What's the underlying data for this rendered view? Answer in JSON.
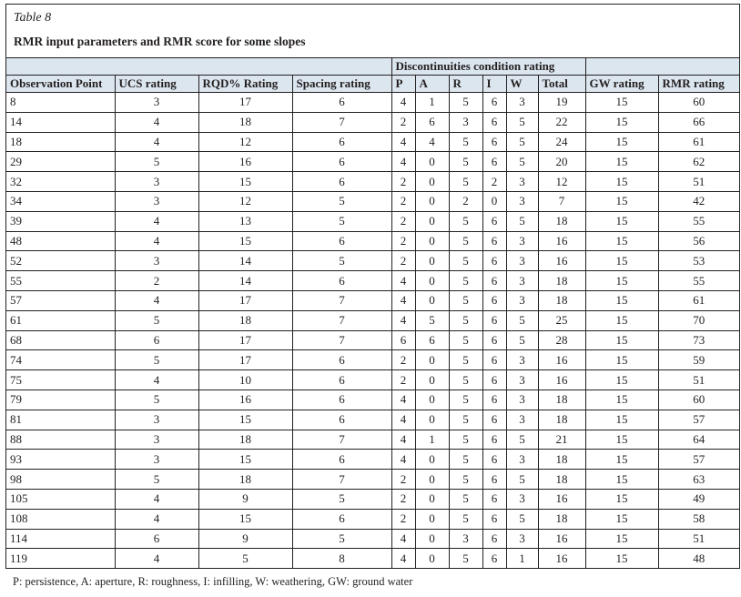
{
  "table": {
    "number": "Table 8",
    "title": "RMR input parameters and RMR score for some slopes",
    "group_header": "Discontinuities condition rating",
    "columns": [
      "Observation Point",
      "UCS rating",
      "RQD% Rating",
      "Spacing rating",
      "P",
      "A",
      "R",
      "I",
      "W",
      "Total",
      "GW rating",
      "RMR rating"
    ],
    "rows": [
      [
        "8",
        "3",
        "17",
        "6",
        "4",
        "1",
        "5",
        "6",
        "3",
        "19",
        "15",
        "60"
      ],
      [
        "14",
        "4",
        "18",
        "7",
        "2",
        "6",
        "3",
        "6",
        "5",
        "22",
        "15",
        "66"
      ],
      [
        "18",
        "4",
        "12",
        "6",
        "4",
        "4",
        "5",
        "6",
        "5",
        "24",
        "15",
        "61"
      ],
      [
        "29",
        "5",
        "16",
        "6",
        "4",
        "0",
        "5",
        "6",
        "5",
        "20",
        "15",
        "62"
      ],
      [
        "32",
        "3",
        "15",
        "6",
        "2",
        "0",
        "5",
        "2",
        "3",
        "12",
        "15",
        "51"
      ],
      [
        "34",
        "3",
        "12",
        "5",
        "2",
        "0",
        "2",
        "0",
        "3",
        "7",
        "15",
        "42"
      ],
      [
        "39",
        "4",
        "13",
        "5",
        "2",
        "0",
        "5",
        "6",
        "5",
        "18",
        "15",
        "55"
      ],
      [
        "48",
        "4",
        "15",
        "6",
        "2",
        "0",
        "5",
        "6",
        "3",
        "16",
        "15",
        "56"
      ],
      [
        "52",
        "3",
        "14",
        "5",
        "2",
        "0",
        "5",
        "6",
        "3",
        "16",
        "15",
        "53"
      ],
      [
        "55",
        "2",
        "14",
        "6",
        "4",
        "0",
        "5",
        "6",
        "3",
        "18",
        "15",
        "55"
      ],
      [
        "57",
        "4",
        "17",
        "7",
        "4",
        "0",
        "5",
        "6",
        "3",
        "18",
        "15",
        "61"
      ],
      [
        "61",
        "5",
        "18",
        "7",
        "4",
        "5",
        "5",
        "6",
        "5",
        "25",
        "15",
        "70"
      ],
      [
        "68",
        "6",
        "17",
        "7",
        "6",
        "6",
        "5",
        "6",
        "5",
        "28",
        "15",
        "73"
      ],
      [
        "74",
        "5",
        "17",
        "6",
        "2",
        "0",
        "5",
        "6",
        "3",
        "16",
        "15",
        "59"
      ],
      [
        "75",
        "4",
        "10",
        "6",
        "2",
        "0",
        "5",
        "6",
        "3",
        "16",
        "15",
        "51"
      ],
      [
        "79",
        "5",
        "16",
        "6",
        "4",
        "0",
        "5",
        "6",
        "3",
        "18",
        "15",
        "60"
      ],
      [
        "81",
        "3",
        "15",
        "6",
        "4",
        "0",
        "5",
        "6",
        "3",
        "18",
        "15",
        "57"
      ],
      [
        "88",
        "3",
        "18",
        "7",
        "4",
        "1",
        "5",
        "6",
        "5",
        "21",
        "15",
        "64"
      ],
      [
        "93",
        "3",
        "15",
        "6",
        "4",
        "0",
        "5",
        "6",
        "3",
        "18",
        "15",
        "57"
      ],
      [
        "98",
        "5",
        "18",
        "7",
        "2",
        "0",
        "5",
        "6",
        "5",
        "18",
        "15",
        "63"
      ],
      [
        "105",
        "4",
        "9",
        "5",
        "2",
        "0",
        "5",
        "6",
        "3",
        "16",
        "15",
        "49"
      ],
      [
        "108",
        "4",
        "15",
        "6",
        "2",
        "0",
        "5",
        "6",
        "5",
        "18",
        "15",
        "58"
      ],
      [
        "114",
        "6",
        "9",
        "5",
        "4",
        "0",
        "3",
        "6",
        "3",
        "16",
        "15",
        "51"
      ],
      [
        "119",
        "4",
        "5",
        "8",
        "4",
        "0",
        "5",
        "6",
        "1",
        "16",
        "15",
        "48"
      ]
    ],
    "footnote": "P: persistence, A: aperture, R: roughness, I: infilling, W: weathering, GW: ground water",
    "header_bg": "#dce6ef"
  }
}
